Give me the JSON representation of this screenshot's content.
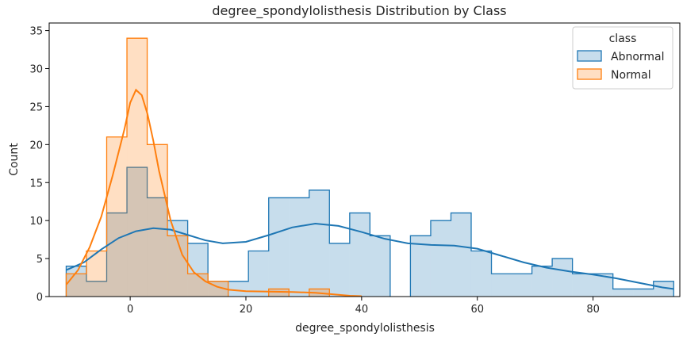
{
  "chart_data": {
    "type": "histogram",
    "title": "degree_spondylolisthesis Distribution by Class",
    "xlabel": "degree_spondylolisthesis",
    "ylabel": "Count",
    "xlim": [
      -14,
      95
    ],
    "ylim": [
      0,
      36
    ],
    "x_ticks": [
      0,
      20,
      40,
      60,
      80
    ],
    "y_ticks": [
      0,
      5,
      10,
      15,
      20,
      25,
      30,
      35
    ],
    "grid": false,
    "legend": {
      "title": "class",
      "position": "top-right"
    },
    "bin_edges": [
      -11.06,
      -7.56,
      -4.06,
      -0.56,
      2.94,
      6.44,
      9.94,
      13.44,
      16.94,
      20.44,
      23.94,
      27.44,
      30.94,
      34.44,
      37.94,
      41.44,
      44.94,
      48.44,
      51.94,
      55.44,
      58.94,
      62.44,
      65.94,
      69.44,
      72.94,
      76.44,
      79.94,
      83.44,
      86.94,
      90.44,
      93.94
    ],
    "series": [
      {
        "name": "Abnormal",
        "color": "#1f77b4",
        "fill": "#aec7e8",
        "counts": [
          4,
          2,
          11,
          17,
          13,
          10,
          7,
          2,
          2,
          6,
          13,
          13,
          14,
          7,
          11,
          8,
          0,
          8,
          10,
          11,
          6,
          3,
          3,
          4,
          5,
          3,
          3,
          1,
          1,
          2
        ],
        "kde": [
          [
            -11,
            3.5
          ],
          [
            -8,
            4.5
          ],
          [
            -5,
            6.2
          ],
          [
            -2,
            7.7
          ],
          [
            1,
            8.6
          ],
          [
            4,
            9.0
          ],
          [
            7,
            8.8
          ],
          [
            10,
            8.1
          ],
          [
            13,
            7.4
          ],
          [
            16,
            7.0
          ],
          [
            20,
            7.2
          ],
          [
            24,
            8.1
          ],
          [
            28,
            9.1
          ],
          [
            32,
            9.6
          ],
          [
            36,
            9.3
          ],
          [
            40,
            8.5
          ],
          [
            44,
            7.6
          ],
          [
            48,
            7.0
          ],
          [
            52,
            6.8
          ],
          [
            56,
            6.7
          ],
          [
            60,
            6.3
          ],
          [
            64,
            5.4
          ],
          [
            68,
            4.5
          ],
          [
            72,
            3.8
          ],
          [
            76,
            3.3
          ],
          [
            80,
            2.9
          ],
          [
            84,
            2.4
          ],
          [
            88,
            1.8
          ],
          [
            92,
            1.2
          ],
          [
            93.9,
            1.0
          ]
        ]
      },
      {
        "name": "Normal",
        "color": "#ff7f0e",
        "fill": "#ffbb78",
        "counts": [
          3,
          6,
          21,
          34,
          20,
          8,
          3,
          2,
          0,
          0,
          1,
          0,
          1,
          0,
          0,
          0,
          0,
          0,
          0,
          0,
          0,
          0,
          0,
          0,
          0,
          0,
          0,
          0,
          0,
          0
        ],
        "kde": [
          [
            -11,
            1.6
          ],
          [
            -9,
            3.5
          ],
          [
            -7,
            6.5
          ],
          [
            -5,
            10.5
          ],
          [
            -3,
            16.0
          ],
          [
            -1,
            22.0
          ],
          [
            0,
            25.5
          ],
          [
            1,
            27.2
          ],
          [
            2,
            26.5
          ],
          [
            3,
            24.0
          ],
          [
            4,
            20.5
          ],
          [
            5,
            16.5
          ],
          [
            7,
            10.0
          ],
          [
            9,
            5.5
          ],
          [
            11,
            3.2
          ],
          [
            13,
            2.0
          ],
          [
            15,
            1.3
          ],
          [
            17,
            0.9
          ],
          [
            20,
            0.7
          ],
          [
            24,
            0.65
          ],
          [
            28,
            0.6
          ],
          [
            32,
            0.5
          ],
          [
            35,
            0.3
          ],
          [
            38,
            0.1
          ],
          [
            40,
            0.05
          ]
        ]
      }
    ]
  }
}
